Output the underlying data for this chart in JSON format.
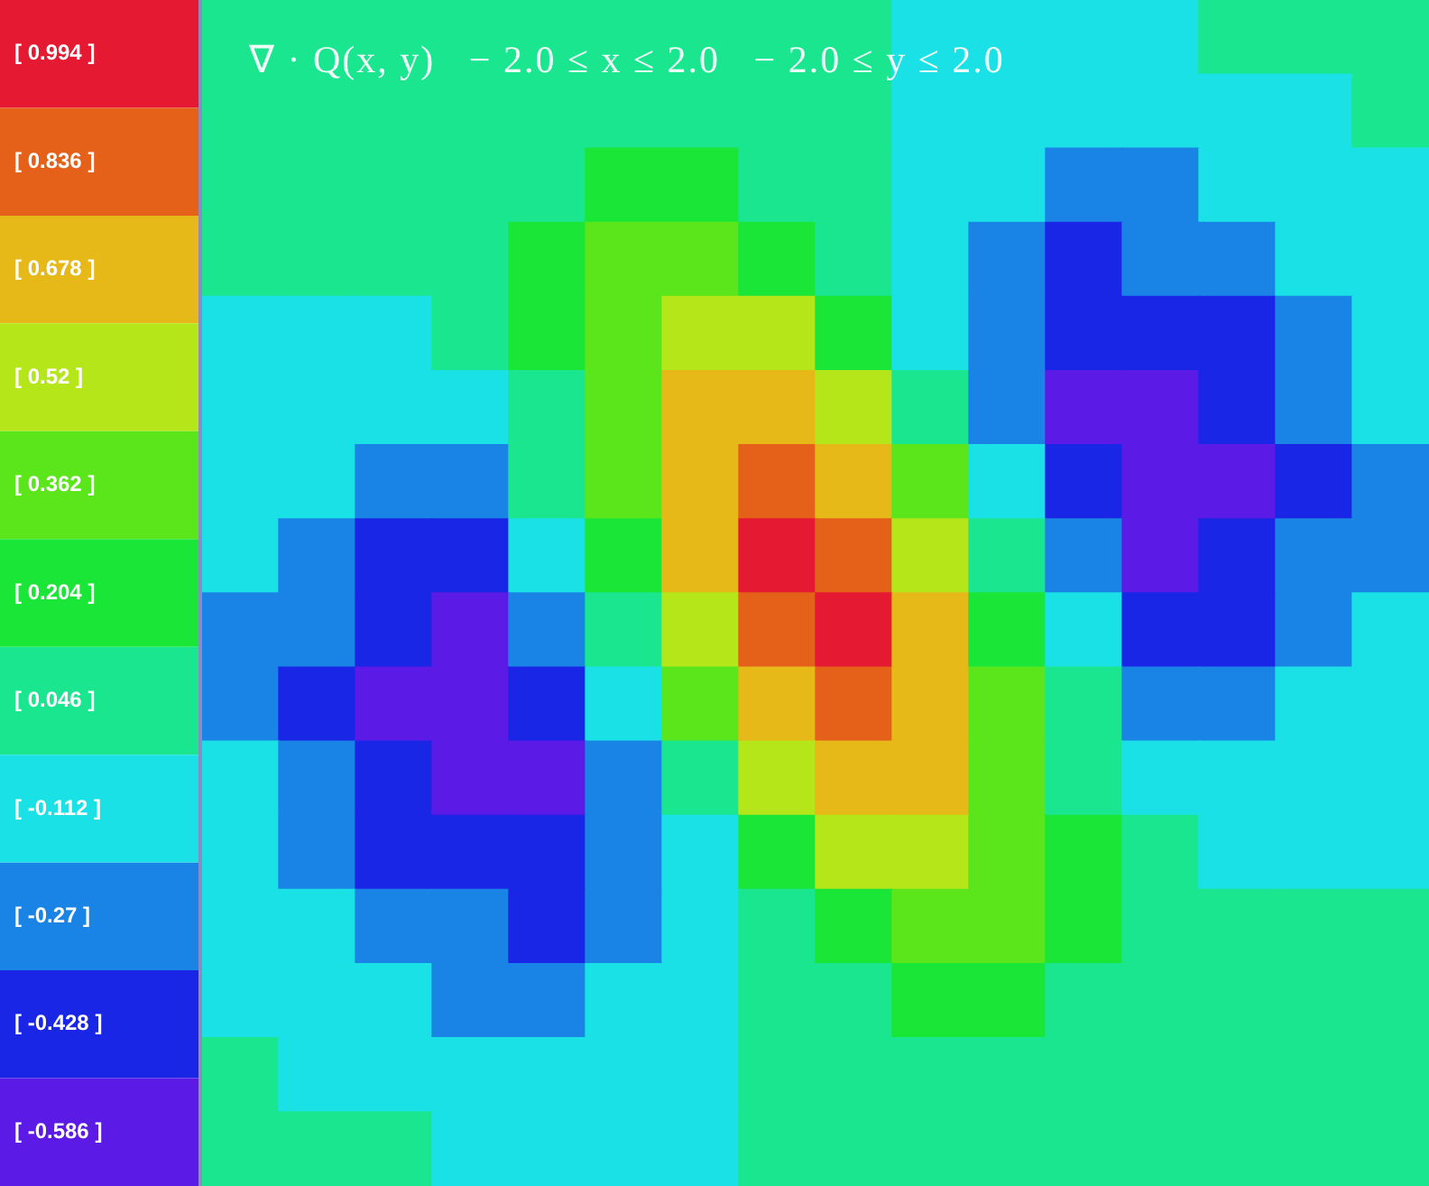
{
  "chart_data": {
    "type": "heatmap",
    "title": "∇ · Q(x, y)   − 2.0 ≤ x ≤ 2.0   − 2.0 ≤ y ≤ 2.0",
    "categories": [
      null,
      null,
      null,
      null,
      null,
      null,
      null,
      null,
      null,
      null,
      null,
      null,
      null,
      null,
      null,
      null
    ],
    "y_categories": [
      null,
      null,
      null,
      null,
      null,
      null,
      null,
      null,
      null,
      null,
      null,
      null,
      null,
      null,
      null,
      null
    ],
    "cells": [
      [
        0.0,
        0.0,
        0.0,
        0.03,
        0.05,
        0.06,
        0.04,
        0.0,
        -0.02,
        -0.04,
        -0.05,
        -0.05,
        -0.04,
        -0.03,
        -0.02,
        -0.01
      ],
      [
        0.0,
        0.0,
        0.0,
        0.03,
        0.09,
        0.12,
        0.1,
        0.04,
        -0.03,
        -0.08,
        -0.11,
        -0.12,
        -0.1,
        -0.08,
        -0.05,
        -0.03
      ],
      [
        -0.01,
        -0.01,
        -0.01,
        0.03,
        0.12,
        0.21,
        0.21,
        0.12,
        -0.01,
        -0.12,
        -0.19,
        -0.22,
        -0.2,
        -0.16,
        -0.1,
        -0.06
      ],
      [
        -0.02,
        -0.03,
        -0.03,
        0.02,
        0.15,
        0.3,
        0.37,
        0.28,
        0.08,
        -0.13,
        -0.28,
        -0.35,
        -0.34,
        -0.27,
        -0.18,
        -0.1
      ],
      [
        -0.04,
        -0.06,
        -0.07,
        -0.02,
        0.15,
        0.38,
        0.54,
        0.49,
        0.26,
        -0.06,
        -0.33,
        -0.47,
        -0.49,
        -0.39,
        -0.26,
        -0.15
      ],
      [
        -0.07,
        -0.12,
        -0.15,
        -0.1,
        0.1,
        0.41,
        0.68,
        0.72,
        0.49,
        0.1,
        -0.28,
        -0.53,
        -0.58,
        -0.49,
        -0.34,
        -0.19
      ],
      [
        -0.11,
        -0.19,
        -0.25,
        -0.22,
        0.0,
        0.37,
        0.74,
        0.9,
        0.73,
        0.33,
        -0.14,
        -0.47,
        -0.59,
        -0.52,
        -0.36,
        -0.21
      ],
      [
        -0.16,
        -0.27,
        -0.37,
        -0.37,
        -0.16,
        0.24,
        0.69,
        0.97,
        0.9,
        0.54,
        0.06,
        -0.34,
        -0.51,
        -0.48,
        -0.34,
        -0.2
      ],
      [
        -0.2,
        -0.34,
        -0.48,
        -0.51,
        -0.34,
        0.06,
        0.54,
        0.9,
        0.97,
        0.69,
        0.24,
        -0.16,
        -0.37,
        -0.37,
        -0.27,
        -0.16
      ],
      [
        -0.21,
        -0.36,
        -0.52,
        -0.59,
        -0.47,
        -0.14,
        0.33,
        0.73,
        0.9,
        0.74,
        0.37,
        0.0,
        -0.22,
        -0.25,
        -0.19,
        -0.11
      ],
      [
        -0.19,
        -0.34,
        -0.49,
        -0.58,
        -0.53,
        -0.28,
        0.1,
        0.49,
        0.72,
        0.68,
        0.41,
        0.1,
        -0.1,
        -0.15,
        -0.12,
        -0.07
      ],
      [
        -0.15,
        -0.26,
        -0.39,
        -0.49,
        -0.47,
        -0.33,
        -0.06,
        0.26,
        0.49,
        0.54,
        0.38,
        0.15,
        -0.02,
        -0.07,
        -0.06,
        -0.04
      ],
      [
        -0.1,
        -0.18,
        -0.27,
        -0.34,
        -0.35,
        -0.28,
        -0.13,
        0.08,
        0.28,
        0.37,
        0.3,
        0.15,
        0.02,
        -0.03,
        -0.03,
        -0.02
      ],
      [
        -0.06,
        -0.1,
        -0.16,
        -0.2,
        -0.22,
        -0.19,
        -0.12,
        -0.01,
        0.12,
        0.21,
        0.21,
        0.12,
        0.03,
        -0.01,
        -0.01,
        -0.01
      ],
      [
        -0.03,
        -0.05,
        -0.08,
        -0.1,
        -0.12,
        -0.11,
        -0.08,
        -0.03,
        0.04,
        0.1,
        0.12,
        0.09,
        0.03,
        0.0,
        0.0,
        0.0
      ],
      [
        -0.01,
        -0.02,
        -0.03,
        -0.04,
        -0.05,
        -0.05,
        -0.04,
        -0.02,
        0.0,
        0.04,
        0.06,
        0.05,
        0.03,
        0.0,
        0.0,
        0.0
      ]
    ],
    "clim": [
      -0.665,
      1.073
    ],
    "cticks": [
      {
        "value": 0.994,
        "label": "[ 0.994 ]"
      },
      {
        "value": 0.836,
        "label": "[ 0.836 ]"
      },
      {
        "value": 0.678,
        "label": "[ 0.678 ]"
      },
      {
        "value": 0.52,
        "label": "[ 0.52 ]"
      },
      {
        "value": 0.362,
        "label": "[ 0.362 ]"
      },
      {
        "value": 0.204,
        "label": "[ 0.204 ]"
      },
      {
        "value": 0.046,
        "label": "[ 0.046 ]"
      },
      {
        "value": -0.112,
        "label": "[ -0.112 ]"
      },
      {
        "value": -0.27,
        "label": "[ -0.27 ]"
      },
      {
        "value": -0.428,
        "label": "[ -0.428 ]"
      },
      {
        "value": -0.586,
        "label": "[ -0.586 ]"
      }
    ],
    "colors": [
      "#e51932",
      "#e5611a",
      "#e6b918",
      "#b5e61a",
      "#5ae61a",
      "#1ae637",
      "#1ae690",
      "#1ae1e6",
      "#1a84e6",
      "#1a26e6",
      "#5b1ae6"
    ]
  }
}
